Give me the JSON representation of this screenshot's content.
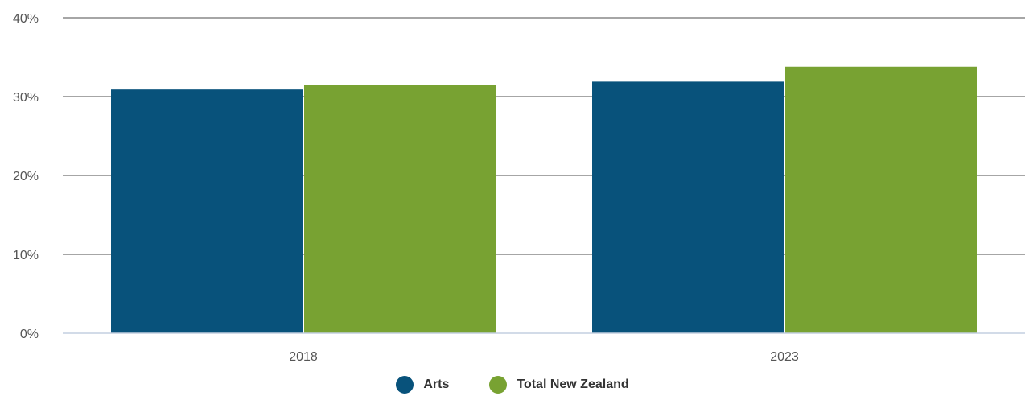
{
  "chart_data": {
    "type": "bar",
    "categories": [
      "2018",
      "2023"
    ],
    "series": [
      {
        "name": "Arts",
        "values": [
          30.9,
          31.9
        ],
        "color": "#08527b"
      },
      {
        "name": "Total New Zealand",
        "values": [
          31.5,
          33.8
        ],
        "color": "#78a232"
      }
    ],
    "y_ticks": [
      "0%",
      "10%",
      "20%",
      "30%",
      "40%"
    ],
    "ylim": [
      0,
      40
    ],
    "grid": true,
    "legend_position": "bottom-center",
    "title": "",
    "xlabel": "",
    "ylabel": ""
  }
}
